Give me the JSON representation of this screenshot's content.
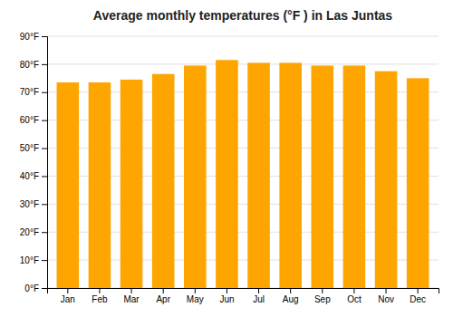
{
  "chart_data": {
    "type": "bar",
    "title": "Average monthly temperatures (°F ) in Las Juntas",
    "categories": [
      "Jan",
      "Feb",
      "Mar",
      "Apr",
      "May",
      "Jun",
      "Jul",
      "Aug",
      "Sep",
      "Oct",
      "Nov",
      "Dec"
    ],
    "values": [
      73.5,
      73.5,
      74.5,
      76.5,
      79.5,
      81.5,
      80.5,
      80.5,
      79.5,
      79.5,
      77.5,
      75.0
    ],
    "color": "#FFA500",
    "ylim": [
      0,
      90
    ],
    "yticks": [
      {
        "value": 0,
        "label": "0°F"
      },
      {
        "value": 10,
        "label": "10°F"
      },
      {
        "value": 20,
        "label": "20°F"
      },
      {
        "value": 30,
        "label": "30°F"
      },
      {
        "value": 40,
        "label": "40°F"
      },
      {
        "value": 50,
        "label": "50°F"
      },
      {
        "value": 60,
        "label": "60°F"
      },
      {
        "value": 70,
        "label": "70°F"
      },
      {
        "value": 80,
        "label": "80°F"
      },
      {
        "value": 90,
        "label": "90°F"
      }
    ],
    "grid": true
  }
}
